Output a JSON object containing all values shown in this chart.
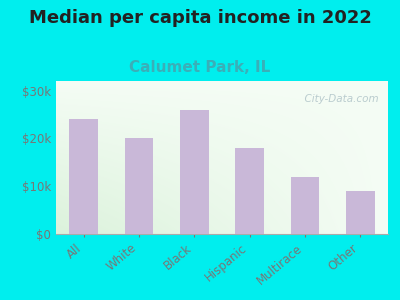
{
  "title": "Median per capita income in 2022",
  "subtitle": "Calumet Park, IL",
  "categories": [
    "All",
    "White",
    "Black",
    "Hispanic",
    "Multirace",
    "Other"
  ],
  "values": [
    24000,
    20000,
    26000,
    18000,
    12000,
    9000
  ],
  "bar_color": "#c9b8d8",
  "background_color": "#00EEEE",
  "plot_bg_topleft": "#d6ecd2",
  "plot_bg_topright": "#f5faf5",
  "plot_bg_bottomleft": "#e8f5e4",
  "plot_bg_bottomright": "#ffffff",
  "title_fontsize": 13,
  "subtitle_fontsize": 11,
  "subtitle_color": "#3aafb8",
  "tick_color": "#777777",
  "ylim": [
    0,
    32000
  ],
  "yticks": [
    0,
    10000,
    20000,
    30000
  ],
  "ytick_labels": [
    "$0",
    "$10k",
    "$20k",
    "$30k"
  ],
  "watermark": "  City-Data.com"
}
